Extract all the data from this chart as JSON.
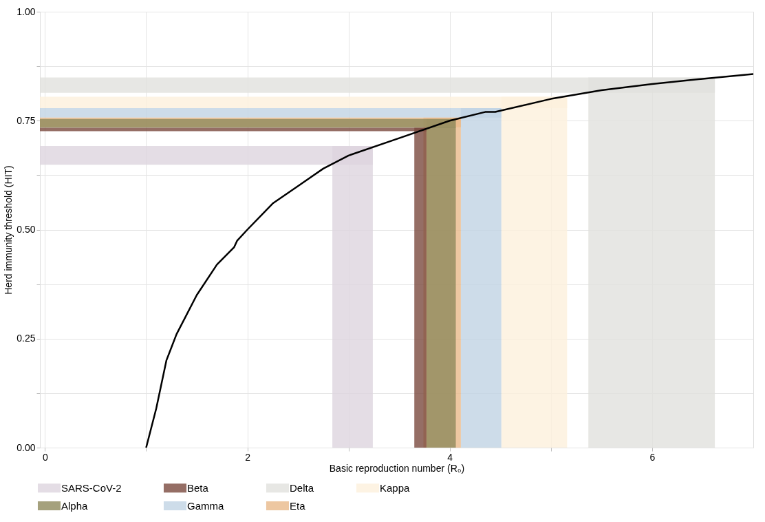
{
  "chart_data": {
    "type": "line",
    "xlabel": "Basic reproduction number (R₀)",
    "ylabel": "Herd immunity threshold (HIT)",
    "xlim": [
      -0.05,
      7
    ],
    "ylim": [
      0,
      1
    ],
    "xticks": [
      0,
      {
        "value": 1,
        "label": null
      },
      2,
      {
        "value": 3,
        "label": null
      },
      4,
      {
        "value": 5,
        "label": null
      },
      6
    ],
    "yticks": [
      {
        "value": 0,
        "label": "0.00"
      },
      {
        "value": 0.125,
        "label": null
      },
      {
        "value": 0.25,
        "label": "0.25"
      },
      {
        "value": 0.375,
        "label": null
      },
      {
        "value": 0.5,
        "label": "0.50"
      },
      {
        "value": 0.625,
        "label": null
      },
      {
        "value": 0.75,
        "label": "0.75"
      },
      {
        "value": 0.875,
        "label": null
      },
      {
        "value": 1,
        "label": "1.00"
      }
    ],
    "grid": true,
    "legend": "bottom",
    "line_style": "solid",
    "series": [
      {
        "color": "#000000",
        "x": [
          1,
          1.1,
          1.2,
          1.3,
          1.5,
          1.7,
          1.87,
          1.9,
          2,
          2.25,
          2.5,
          2.75,
          3,
          3.5,
          4,
          4.35,
          4.45,
          5,
          5.5,
          6,
          6.5,
          7
        ],
        "values": [
          0,
          0.09,
          0.2,
          0.26,
          0.35,
          0.42,
          0.46,
          0.475,
          0.5,
          0.56,
          0.6,
          0.64,
          0.67,
          0.71,
          0.75,
          0.77,
          0.77,
          0.8,
          0.82,
          0.834,
          0.846,
          0.857
        ]
      }
    ],
    "bands": [
      {
        "axis": "x",
        "from": 2.84,
        "to": 3.24,
        "label": "SARS-CoV-2",
        "color": "#ddd5de"
      },
      {
        "axis": "x",
        "from": 3.65,
        "to": 3.77,
        "label": "Beta",
        "color": "#7a4a3f"
      },
      {
        "axis": "x",
        "from": 5.37,
        "to": 6.62,
        "label": "Delta",
        "color": "#e1e1dd"
      },
      {
        "axis": "x",
        "from": 4.51,
        "to": 5.16,
        "label": "Kappa",
        "color": "#fdf0dc"
      },
      {
        "axis": "x",
        "from": 3.77,
        "to": 4.06,
        "label": "Alpha",
        "color": "#8f8a5c"
      },
      {
        "axis": "x",
        "from": 4.11,
        "to": 4.51,
        "label": "Gamma",
        "color": "#c0d3e3"
      },
      {
        "axis": "x",
        "from": 3.74,
        "to": 4.11,
        "label": "Eta",
        "color": "#e8b98a"
      },
      {
        "axis": "y",
        "from": 0.649,
        "to": 0.692,
        "color": "#ddd5de"
      },
      {
        "axis": "y",
        "from": 0.726,
        "to": 0.734,
        "color": "#7a4a3f"
      },
      {
        "axis": "y",
        "from": 0.814,
        "to": 0.849,
        "color": "#e1e1dd"
      },
      {
        "axis": "y",
        "from": 0.779,
        "to": 0.805,
        "color": "#fdf0dc"
      },
      {
        "axis": "y",
        "from": 0.734,
        "to": 0.754,
        "color": "#8f8a5c"
      },
      {
        "axis": "y",
        "from": 0.757,
        "to": 0.779,
        "color": "#c0d3e3"
      },
      {
        "axis": "y",
        "from": 0.735,
        "to": 0.757,
        "color": "#e8b98a"
      }
    ]
  }
}
